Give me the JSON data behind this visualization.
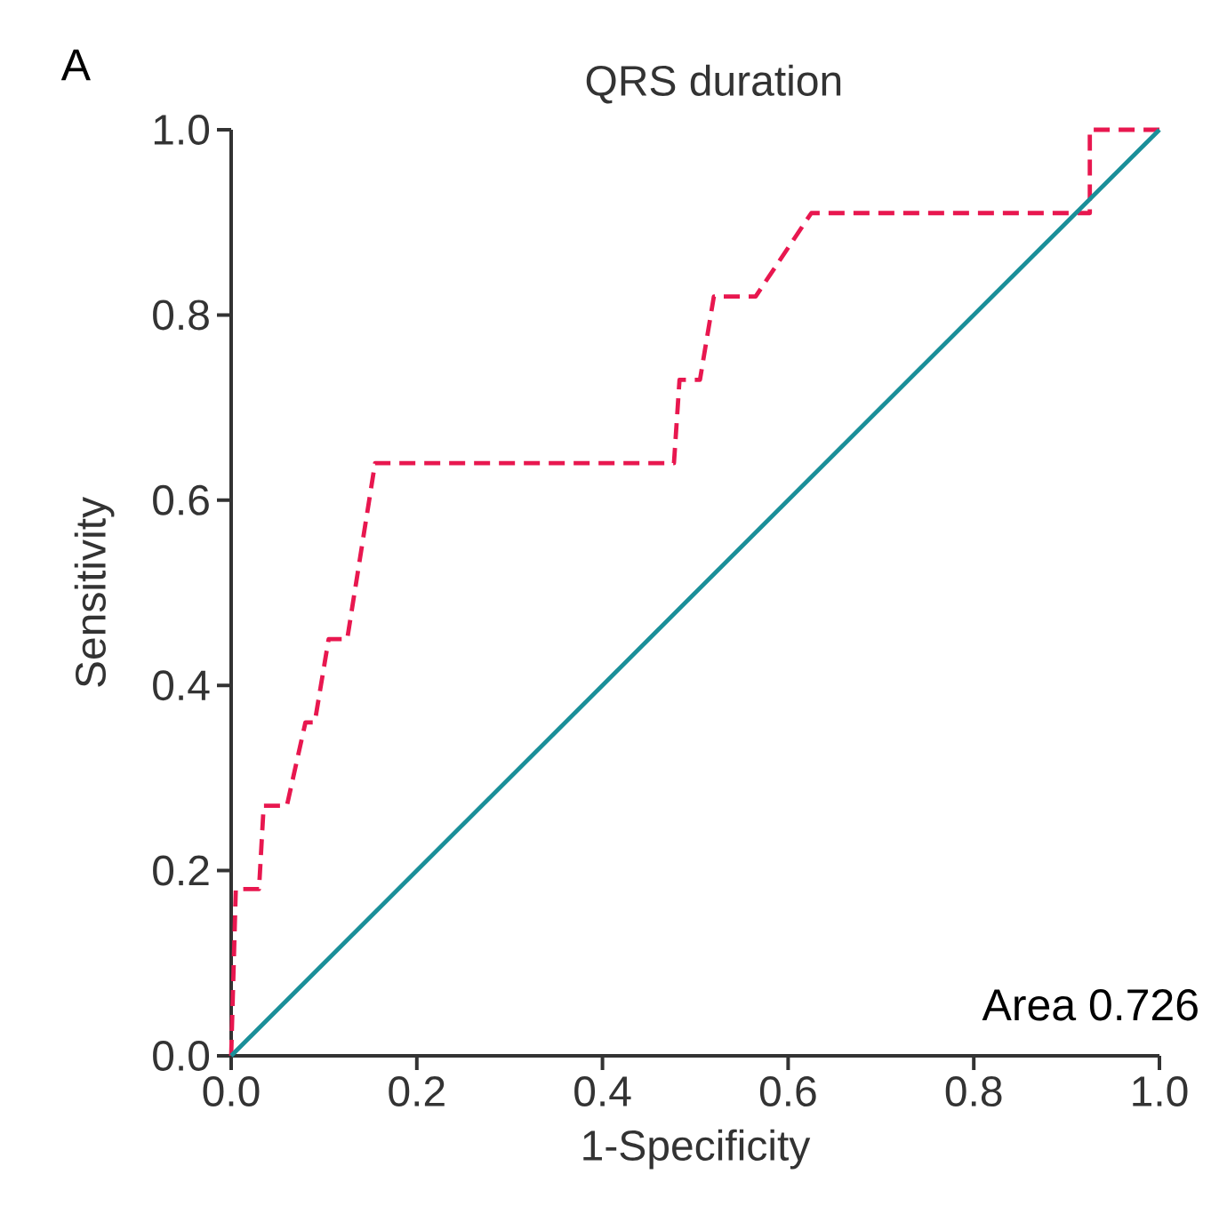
{
  "chart_data": {
    "type": "line",
    "title": "QRS duration",
    "xlabel": "1-Specificity",
    "ylabel": "Sensitivity",
    "annotations": [
      "A",
      "Area 0.726"
    ],
    "xlim": [
      0,
      1
    ],
    "ylim": [
      0,
      1
    ],
    "xticks": [
      {
        "value": 0,
        "label": "0.0"
      },
      0.2,
      0.4,
      0.6,
      0.8,
      {
        "value": 1,
        "label": "1.0"
      }
    ],
    "yticks": [
      {
        "value": 0,
        "label": "0.0"
      },
      0.2,
      0.4,
      0.6,
      0.8,
      {
        "value": 1,
        "label": "1.0"
      }
    ],
    "grid": false,
    "marker": "none",
    "series": [
      {
        "color": "#e8174f",
        "line_style": "dashed",
        "x": [
          0,
          0.005,
          0.03,
          0.035,
          0.06,
          0.08,
          0.09,
          0.105,
          0.125,
          0.155,
          0.477,
          0.483,
          0.505,
          0.52,
          0.565,
          0.625,
          0.925,
          0.925,
          1.0
        ],
        "values": [
          0,
          0.18,
          0.18,
          0.27,
          0.27,
          0.36,
          0.36,
          0.45,
          0.45,
          0.64,
          0.64,
          0.73,
          0.73,
          0.82,
          0.82,
          0.91,
          0.91,
          1.0,
          1.0
        ]
      },
      {
        "color": "#1a8f99",
        "line_style": "solid",
        "x": [
          0,
          1
        ],
        "values": [
          0,
          1
        ]
      }
    ]
  }
}
